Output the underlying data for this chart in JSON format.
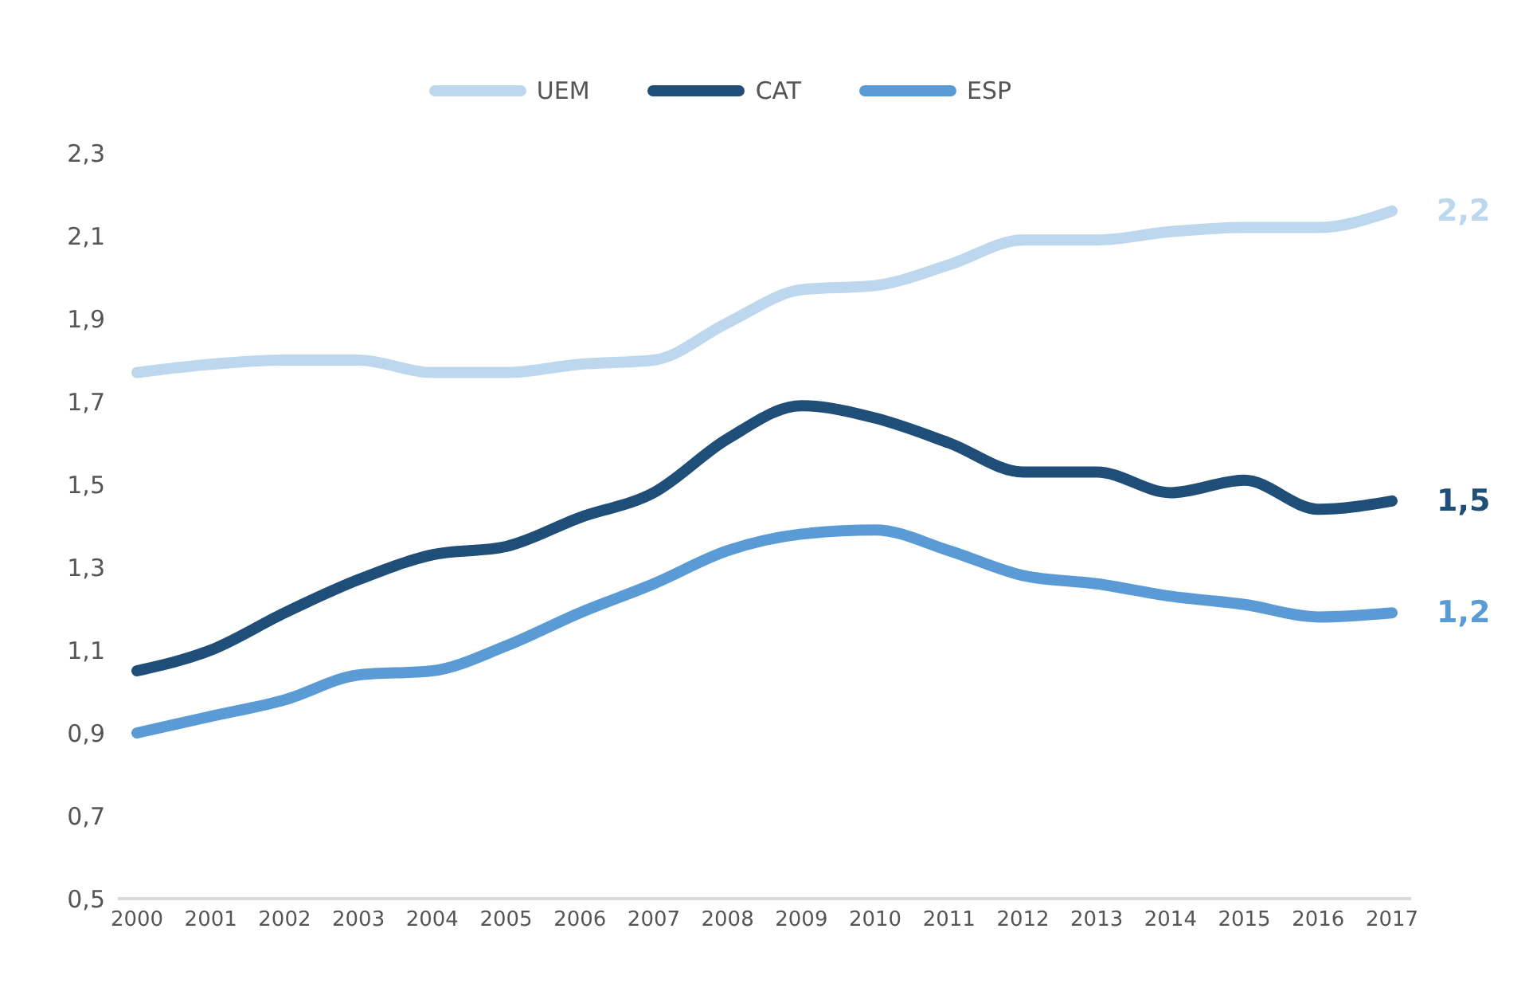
{
  "chart_data": {
    "type": "line",
    "categories": [
      "2000",
      "2001",
      "2002",
      "2003",
      "2004",
      "2005",
      "2006",
      "2007",
      "2008",
      "2009",
      "2010",
      "2011",
      "2012",
      "2013",
      "2014",
      "2015",
      "2016",
      "2017"
    ],
    "series": [
      {
        "name": "UEM",
        "color": "#bdd7ee",
        "values": [
          1.77,
          1.79,
          1.8,
          1.8,
          1.77,
          1.77,
          1.79,
          1.8,
          1.89,
          1.97,
          1.98,
          2.03,
          2.09,
          2.09,
          2.11,
          2.12,
          2.12,
          2.16
        ],
        "value_labels": [
          null,
          null,
          null,
          null,
          null,
          null,
          null,
          null,
          null,
          null,
          null,
          null,
          null,
          null,
          null,
          null,
          null,
          "2,2"
        ]
      },
      {
        "name": "CAT",
        "color": "#1f4e79",
        "values": [
          1.05,
          1.1,
          1.19,
          1.27,
          1.33,
          1.35,
          1.42,
          1.48,
          1.61,
          1.69,
          1.66,
          1.6,
          1.53,
          1.53,
          1.48,
          1.51,
          1.44,
          1.46
        ],
        "value_labels": [
          null,
          null,
          null,
          null,
          null,
          null,
          null,
          null,
          null,
          null,
          null,
          null,
          null,
          null,
          null,
          null,
          null,
          "1,5"
        ]
      },
      {
        "name": "ESP",
        "color": "#5b9bd5",
        "values": [
          0.9,
          0.94,
          0.98,
          1.04,
          1.05,
          1.11,
          1.19,
          1.26,
          1.34,
          1.38,
          1.39,
          1.34,
          1.28,
          1.26,
          1.23,
          1.21,
          1.18,
          1.19
        ],
        "value_labels": [
          null,
          null,
          null,
          null,
          null,
          null,
          null,
          null,
          null,
          null,
          null,
          null,
          null,
          null,
          null,
          null,
          null,
          "1,2"
        ]
      }
    ],
    "ylim": [
      0.5,
      2.3
    ],
    "yticks": [
      {
        "value": 0.5,
        "label": "0,5"
      },
      {
        "value": 0.7,
        "label": "0,7"
      },
      {
        "value": 0.9,
        "label": "0,9"
      },
      {
        "value": 1.1,
        "label": "1,1"
      },
      {
        "value": 1.3,
        "label": "1,3"
      },
      {
        "value": 1.5,
        "label": "1,5"
      },
      {
        "value": 1.7,
        "label": "1,7"
      },
      {
        "value": 1.9,
        "label": "1,9"
      },
      {
        "value": 2.1,
        "label": "2,1"
      },
      {
        "value": 2.3,
        "label": "2,3"
      }
    ],
    "grid": false,
    "legend": "top",
    "marker": "none",
    "line_style": "solid"
  }
}
